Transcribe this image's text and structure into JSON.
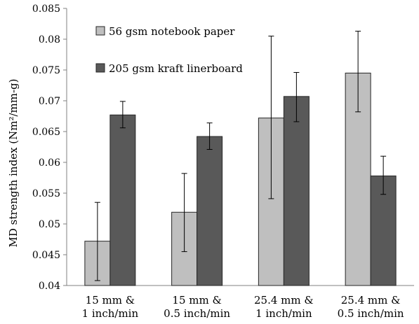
{
  "chart_data": {
    "type": "bar",
    "title": "",
    "xlabel": "",
    "ylabel": "MD strength index (Nm²/mm-g)",
    "ylim": [
      0.04,
      0.085
    ],
    "yticks": [
      "0.04",
      "0.045",
      "0.05",
      "0.055",
      "0.06",
      "0.065",
      "0.07",
      "0.075",
      "0.08",
      "0.085"
    ],
    "grid": false,
    "legend_position": "top-left",
    "categories": [
      [
        "15 mm &",
        "1 inch/min"
      ],
      [
        "15 mm &",
        "0.5 inch/min"
      ],
      [
        "25.4 mm &",
        "1 inch/min"
      ],
      [
        "25.4 mm &",
        "0.5 inch/min"
      ]
    ],
    "series": [
      {
        "name": "56 gsm notebook paper",
        "color": "#bfbfbf",
        "values": [
          0.0472,
          0.0519,
          0.0672,
          0.0745
        ],
        "error_low": [
          0.0408,
          0.0455,
          0.0541,
          0.0682
        ],
        "error_high": [
          0.0535,
          0.0582,
          0.0805,
          0.0813
        ]
      },
      {
        "name": "205 gsm kraft linerboard",
        "color": "#595959",
        "values": [
          0.0677,
          0.0642,
          0.0707,
          0.0578
        ],
        "error_low": [
          0.0656,
          0.0621,
          0.0666,
          0.0548
        ],
        "error_high": [
          0.0699,
          0.0664,
          0.0746,
          0.061
        ]
      }
    ]
  }
}
